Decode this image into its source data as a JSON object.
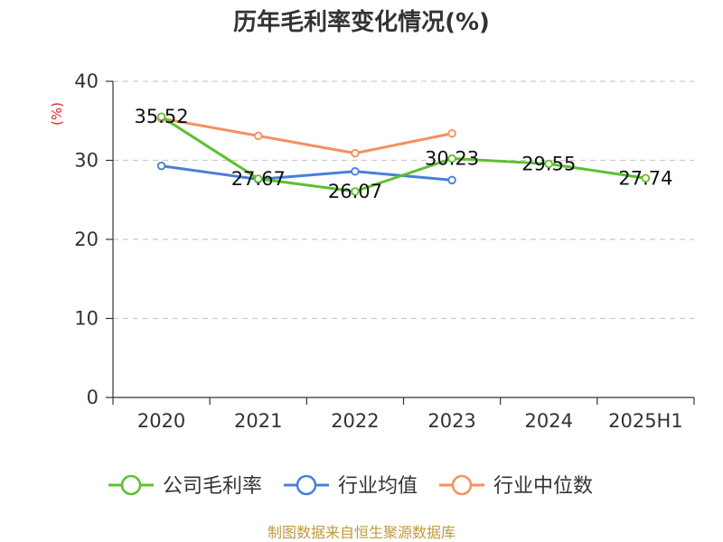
{
  "chart_data": {
    "type": "line",
    "title": "历年毛利率变化情况(%)",
    "ylabel": "(%)",
    "categories": [
      "2020",
      "2021",
      "2022",
      "2023",
      "2024",
      "2025H1"
    ],
    "ylim": [
      0,
      40
    ],
    "yticks": [
      0,
      10,
      20,
      30,
      40
    ],
    "grid": true,
    "legend_position": "bottom",
    "series": [
      {
        "name": "公司毛利率",
        "color": "#5cc030",
        "values": [
          35.52,
          27.67,
          26.07,
          30.23,
          29.55,
          27.74
        ],
        "labels": [
          "35.52",
          "27.67",
          "26.07",
          "30.23",
          "29.55",
          "27.74"
        ]
      },
      {
        "name": "行业均值",
        "color": "#4a7fd6",
        "values": [
          29.3,
          27.6,
          28.6,
          27.5,
          null,
          null
        ]
      },
      {
        "name": "行业中位数",
        "color": "#f59060",
        "values": [
          35.3,
          33.1,
          30.9,
          33.4,
          null,
          null
        ]
      }
    ],
    "source": "制图数据来自恒生聚源数据库"
  }
}
